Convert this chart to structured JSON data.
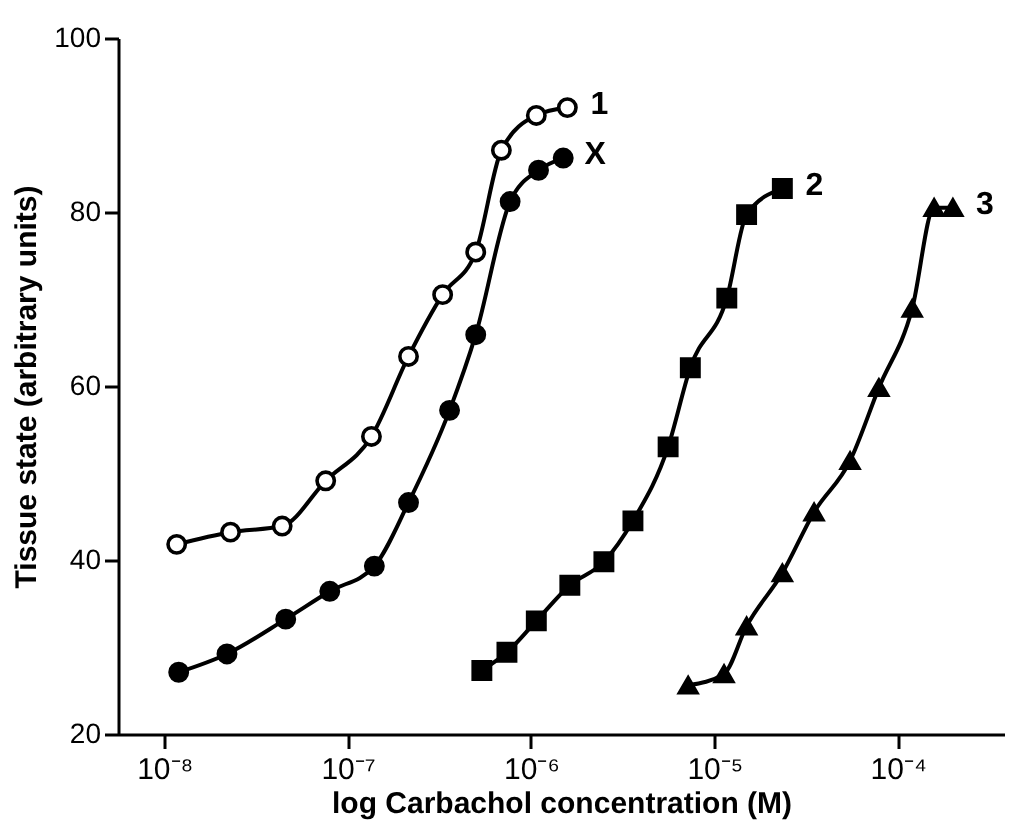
{
  "chart_data": {
    "type": "line",
    "xlabel": "log Carbachol concentration (M)",
    "ylabel": "Tissue state (arbitrary units)",
    "log": "x",
    "xlim": [
      5.6e-09,
      0.00038
    ],
    "ylim": [
      20,
      100
    ],
    "xticks": [
      {
        "value": 1e-08,
        "label": "10⁻⁸"
      },
      {
        "value": 1e-07,
        "label": "10⁻⁷"
      },
      {
        "value": 1e-06,
        "label": "10⁻⁶"
      },
      {
        "value": 1e-05,
        "label": "10⁻⁵"
      },
      {
        "value": 0.0001,
        "label": "10⁻⁴"
      }
    ],
    "yticks": [
      20,
      40,
      60,
      80,
      100
    ],
    "grid": false,
    "line_style": "solid",
    "series": [
      {
        "name": "1",
        "color": "#000000",
        "marker": "circle",
        "x": [
          1.17e-08,
          2.3e-08,
          4.4e-08,
          7.6e-08,
          1.35e-07,
          2.15e-07,
          3.3e-07,
          5e-07,
          6.9e-07,
          1.07e-06,
          1.58e-06
        ],
        "values": [
          41.8,
          43.2,
          43.9,
          49.1,
          54.2,
          63.4,
          70.5,
          75.4,
          87.1,
          91.1,
          92.0
        ]
      },
      {
        "name": "X",
        "color": "#000000",
        "marker": "circle",
        "x": [
          1.2e-08,
          2.2e-08,
          4.6e-08,
          8e-08,
          1.4e-07,
          2.15e-07,
          3.6e-07,
          5e-07,
          7.7e-07,
          1.1e-06,
          1.5e-06
        ],
        "values": [
          27.1,
          29.2,
          33.2,
          36.4,
          39.3,
          46.6,
          57.2,
          65.9,
          81.2,
          84.8,
          86.2
        ]
      },
      {
        "name": "2",
        "color": "#000000",
        "marker": "square",
        "x": [
          5.4e-07,
          7.4e-07,
          1.07e-06,
          1.63e-06,
          2.5e-06,
          3.6e-06,
          5.6e-06,
          7.4e-06,
          1.17e-05,
          1.5e-05,
          2.35e-05
        ],
        "values": [
          27.3,
          29.4,
          33.0,
          37.1,
          39.8,
          44.5,
          53.0,
          62.1,
          70.1,
          79.7,
          82.7
        ]
      },
      {
        "name": "3",
        "color": "#000000",
        "marker": "triangle",
        "x": [
          7.2e-06,
          1.13e-05,
          1.5e-05,
          2.35e-05,
          3.5e-05,
          5.5e-05,
          7.9e-05,
          0.00012,
          0.000158,
          0.0002
        ],
        "values": [
          25.6,
          26.9,
          32.4,
          38.5,
          45.5,
          51.4,
          59.8,
          68.9,
          80.5,
          80.5
        ]
      }
    ]
  }
}
